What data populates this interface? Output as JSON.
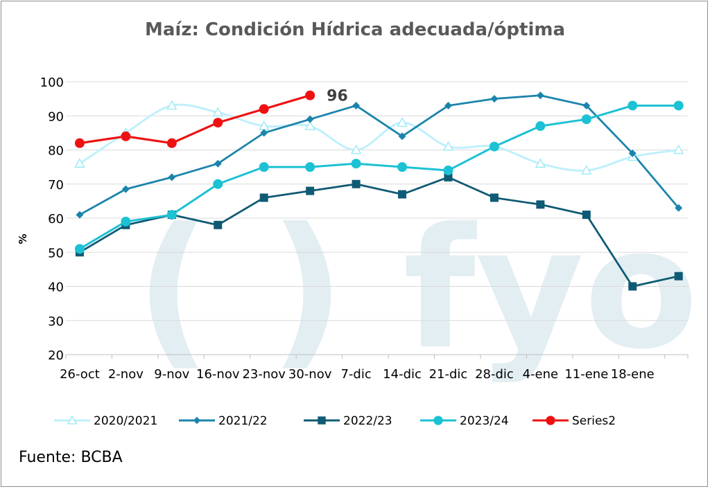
{
  "chart_data": {
    "type": "line",
    "title": "Maíz: Condición Hídrica adecuada/óptima",
    "ylabel": "%",
    "xlabel": "",
    "ylim": [
      20,
      100
    ],
    "yticks": [
      20,
      30,
      40,
      50,
      60,
      70,
      80,
      90,
      100
    ],
    "grid": true,
    "categories": [
      "26-oct",
      "2-nov",
      "9-nov",
      "16-nov",
      "23-nov",
      "30-nov",
      "7-dic",
      "14-dic",
      "21-dic",
      "28-dic",
      "4-ene",
      "11-ene",
      "18-ene",
      ""
    ],
    "series": [
      {
        "name": "2020/2021",
        "color": "#bff0fb",
        "marker": "triangle",
        "smooth": true,
        "values": [
          76,
          85,
          93,
          91,
          87,
          87,
          80,
          88,
          81,
          81,
          76,
          74,
          78,
          80
        ]
      },
      {
        "name": "2021/22",
        "color": "#1b84ab",
        "marker": "diamond",
        "smooth": false,
        "values": [
          61,
          68.5,
          72,
          76,
          85,
          89,
          93,
          84,
          93,
          95,
          96,
          93,
          79,
          63
        ]
      },
      {
        "name": "2022/23",
        "color": "#0f5a74",
        "marker": "square",
        "smooth": false,
        "values": [
          50,
          58,
          61,
          58,
          66,
          68,
          70,
          67,
          72,
          66,
          64,
          61,
          40,
          43
        ]
      },
      {
        "name": "2023/24",
        "color": "#1cc1d4",
        "marker": "circle",
        "smooth": false,
        "values": [
          51,
          59,
          61,
          70,
          75,
          75,
          76,
          75,
          74,
          81,
          87,
          89,
          93,
          93
        ]
      },
      {
        "name": "Series2",
        "color": "#ee1111",
        "marker": "circle",
        "smooth": false,
        "values": [
          82,
          84,
          82,
          88,
          92,
          96,
          null,
          null,
          null,
          null,
          null,
          null,
          null,
          null
        ]
      }
    ],
    "annotations": [
      {
        "text": "96",
        "series": "Series2",
        "index": 5
      }
    ],
    "legend_position": "bottom"
  },
  "watermark": "( ) fyo",
  "source": "Fuente:  BCBA"
}
